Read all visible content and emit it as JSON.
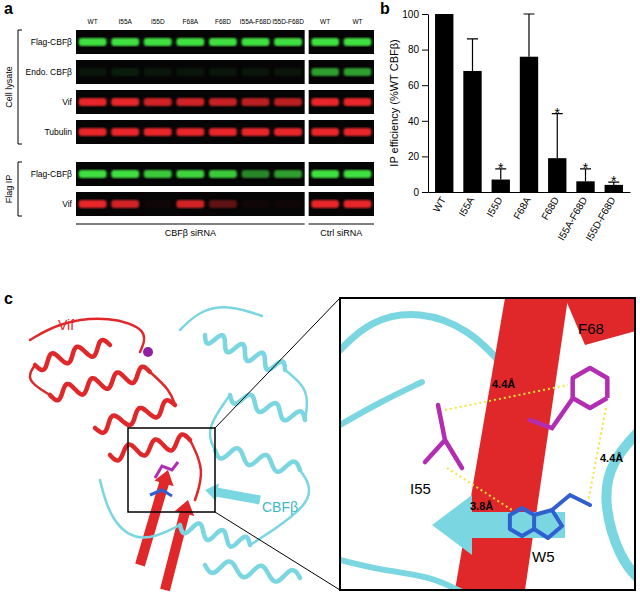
{
  "panel_labels": [
    "a",
    "b",
    "c"
  ],
  "blot": {
    "lanes": [
      "WT",
      "I55A",
      "I55D",
      "F68A",
      "F68D",
      "I55A-F68D",
      "I55D-F68D",
      "WT",
      "WT"
    ],
    "groups": [
      {
        "label": "CBFβ siRNA",
        "lane_count": 7
      },
      {
        "label": "Ctrl siRNA",
        "lane_count": 2
      }
    ],
    "sections": [
      {
        "label": "Cell lysate",
        "rows": [
          {
            "label": "Flag-CBFβ",
            "color": "#3fe03f",
            "intensity": [
              1,
              1,
              1,
              1,
              1,
              1,
              1,
              1,
              1
            ]
          },
          {
            "label": "Endo. CBFβ",
            "color": "#3fe03f",
            "intensity": [
              0.08,
              0.1,
              0.08,
              0.08,
              0.08,
              0.08,
              0.08,
              0.7,
              0.7
            ]
          },
          {
            "label": "Vif",
            "color": "#e8262a",
            "intensity": [
              1,
              1,
              0.9,
              0.9,
              0.85,
              0.8,
              0.8,
              1,
              1
            ]
          },
          {
            "label": "Tubulin",
            "color": "#e8262a",
            "intensity": [
              1,
              1,
              1,
              1,
              1,
              1,
              1,
              1,
              1
            ]
          }
        ]
      },
      {
        "label": "Flag IP",
        "rows": [
          {
            "label": "Flag-CBFβ",
            "color": "#3fe03f",
            "intensity": [
              1,
              1,
              0.9,
              0.95,
              0.9,
              0.6,
              0.7,
              1,
              1
            ]
          },
          {
            "label": "Vif",
            "color": "#e8262a",
            "intensity": [
              1,
              0.9,
              0.05,
              0.9,
              0.4,
              0.05,
              0.05,
              1,
              1
            ]
          }
        ]
      }
    ]
  },
  "chart_data": {
    "type": "bar",
    "ylabel": "IP efficiency (%WT CBFβ)",
    "categories": [
      "WT",
      "I55A",
      "I55D",
      "F68A",
      "F68D",
      "I55A-F68D",
      "I55D-F68D"
    ],
    "values": [
      100,
      68,
      7,
      76,
      19,
      6,
      4
    ],
    "errors": [
      null,
      18,
      6,
      24,
      25,
      7,
      1.5
    ],
    "color": "#000000",
    "ylim": [
      0,
      100
    ],
    "yticks": [
      0,
      20,
      40,
      60,
      80,
      100
    ],
    "annotations": [
      {
        "text": "*",
        "category": "I55D"
      },
      {
        "text": "*",
        "category": "F68D"
      },
      {
        "text": "*",
        "category": "I55A-F68D"
      },
      {
        "text": "*",
        "category": "I55D-F68D"
      }
    ],
    "grid": false
  },
  "structure": {
    "chains": [
      "Vif",
      "CBFβ"
    ],
    "residues": [
      "F68",
      "I55",
      "W5"
    ],
    "distances": [
      "4.4Å",
      "3.8Å",
      "4.4Å"
    ]
  }
}
